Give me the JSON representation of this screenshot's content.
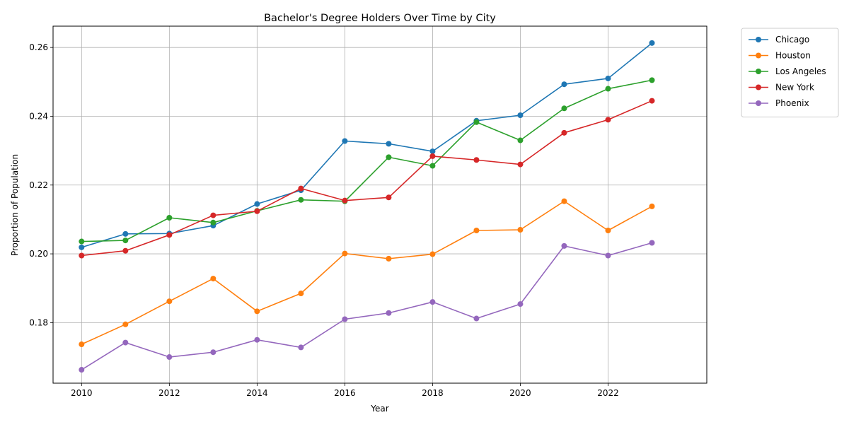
{
  "chart_data": {
    "type": "line",
    "title": "Bachelor's Degree Holders Over Time by City",
    "xlabel": "Year",
    "ylabel": "Proportion of Population",
    "x": [
      2010,
      2011,
      2012,
      2013,
      2014,
      2015,
      2016,
      2017,
      2018,
      2019,
      2020,
      2021,
      2022,
      2023
    ],
    "xlim": [
      2009.35,
      2024.25
    ],
    "ylim": [
      0.1624,
      0.2662
    ],
    "xticks": [
      2010,
      2012,
      2014,
      2016,
      2018,
      2020,
      2022
    ],
    "yticks": [
      0.18,
      0.2,
      0.22,
      0.24,
      0.26
    ],
    "grid": true,
    "legend_position": "outside-top-right",
    "series": [
      {
        "name": "Chicago",
        "color": "#1f77b4",
        "values": [
          0.2019,
          0.2058,
          0.2059,
          0.2082,
          0.2145,
          0.2185,
          0.2328,
          0.232,
          0.2298,
          0.2387,
          0.2403,
          0.2493,
          0.251,
          0.2613
        ]
      },
      {
        "name": "Houston",
        "color": "#ff7f0e",
        "values": [
          0.1737,
          0.1795,
          0.1862,
          0.1928,
          0.1833,
          0.1885,
          0.2001,
          0.1986,
          0.1999,
          0.2068,
          0.207,
          0.2153,
          0.2068,
          0.2138
        ]
      },
      {
        "name": "Los Angeles",
        "color": "#2ca02c",
        "values": [
          0.2036,
          0.2039,
          0.2105,
          0.2091,
          0.2125,
          0.2157,
          0.2153,
          0.2281,
          0.2256,
          0.2383,
          0.233,
          0.2423,
          0.248,
          0.2505
        ]
      },
      {
        "name": "New York",
        "color": "#d62728",
        "values": [
          0.1995,
          0.2009,
          0.2055,
          0.2112,
          0.2124,
          0.219,
          0.2155,
          0.2164,
          0.2284,
          0.2273,
          0.226,
          0.2352,
          0.239,
          0.2445
        ]
      },
      {
        "name": "Phoenix",
        "color": "#9467bd",
        "values": [
          0.1663,
          0.1742,
          0.17,
          0.1714,
          0.175,
          0.1728,
          0.181,
          0.1828,
          0.186,
          0.1812,
          0.1854,
          0.2023,
          0.1995,
          0.2032
        ]
      }
    ]
  }
}
